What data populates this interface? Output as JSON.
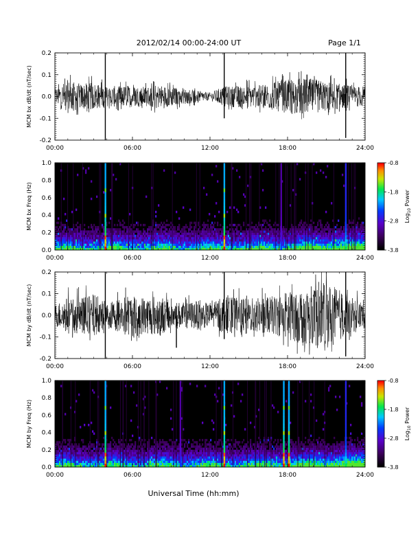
{
  "header": {
    "title": "2012/02/14  00:00-24:00 UT",
    "page": "Page 1/1"
  },
  "xlabel": "Universal Time (hh:mm)",
  "xticks": [
    "00:00",
    "06:00",
    "12:00",
    "18:00",
    "24:00"
  ],
  "colorbar": {
    "label_main": "Log",
    "label_sub": "10",
    "label_tail": " Power",
    "ticks": [
      "-0.8",
      "-1.8",
      "-2.8",
      "-3.8"
    ],
    "range": [
      -3.8,
      -0.8
    ]
  },
  "chart_data": [
    {
      "type": "line",
      "ylabel": "MCM bx dB/dt (nT/sec)",
      "xlim": [
        0,
        24
      ],
      "ylim": [
        -0.2,
        0.2
      ],
      "yticks": [
        "0.2",
        "0.1",
        "0.0",
        "-0.1",
        "-0.2"
      ],
      "series": [
        {
          "x": [
            0,
            1,
            2,
            3,
            4,
            5,
            6,
            7,
            8,
            9,
            10,
            11,
            12,
            13,
            14,
            15,
            16,
            17,
            18,
            19,
            20,
            21,
            22,
            23,
            24
          ],
          "envelope_high": [
            0.04,
            0.09,
            0.07,
            0.08,
            0.05,
            0.06,
            0.05,
            0.05,
            0.06,
            0.05,
            0.04,
            0.03,
            0.02,
            0.05,
            0.06,
            0.06,
            0.06,
            0.08,
            0.09,
            0.1,
            0.09,
            0.08,
            0.07,
            0.06,
            0.05
          ],
          "envelope_low": [
            -0.04,
            -0.08,
            -0.06,
            -0.06,
            -0.05,
            -0.05,
            -0.06,
            -0.05,
            -0.06,
            -0.05,
            -0.04,
            -0.03,
            -0.02,
            -0.05,
            -0.05,
            -0.05,
            -0.06,
            -0.07,
            -0.08,
            -0.09,
            -0.09,
            -0.07,
            -0.06,
            -0.05,
            -0.05
          ]
        }
      ],
      "spikes": [
        {
          "t": 3.9,
          "low": -0.21,
          "high": 0.2
        },
        {
          "t": 13.1,
          "low": -0.1,
          "high": 0.21
        },
        {
          "t": 22.5,
          "low": -0.19,
          "high": 0.2
        }
      ]
    },
    {
      "type": "heatmap",
      "ylabel": "MCM bx Freq (Hz)",
      "xlim": [
        0,
        24
      ],
      "ylim": [
        0.0,
        1.0
      ],
      "yticks": [
        "1.0",
        "0.8",
        "0.6",
        "0.4",
        "0.2",
        "0.0"
      ],
      "bright_lines": [
        {
          "t": 3.9,
          "level": "full"
        },
        {
          "t": 13.1,
          "level": "full"
        },
        {
          "t": 22.5,
          "level": "medium"
        },
        {
          "t": 17.5,
          "level": "weak"
        }
      ],
      "low_freq_power": "high below 0.1 Hz, activity increasing after 16:00"
    },
    {
      "type": "line",
      "ylabel": "MCM by dB/dt (nT/sec)",
      "xlim": [
        0,
        24
      ],
      "ylim": [
        -0.2,
        0.2
      ],
      "yticks": [
        "0.2",
        "0.1",
        "0.0",
        "-0.1",
        "-0.2"
      ],
      "series": [
        {
          "x": [
            0,
            1,
            2,
            3,
            4,
            5,
            6,
            7,
            8,
            9,
            10,
            11,
            12,
            13,
            14,
            15,
            16,
            17,
            18,
            19,
            20,
            21,
            22,
            23,
            24
          ],
          "envelope_high": [
            0.06,
            0.1,
            0.1,
            0.12,
            0.06,
            0.1,
            0.12,
            0.1,
            0.11,
            0.08,
            0.07,
            0.08,
            0.06,
            0.1,
            0.1,
            0.09,
            0.1,
            0.1,
            0.13,
            0.14,
            0.15,
            0.18,
            0.15,
            0.1,
            0.07
          ],
          "envelope_low": [
            -0.05,
            -0.09,
            -0.08,
            -0.1,
            -0.06,
            -0.08,
            -0.1,
            -0.09,
            -0.1,
            -0.07,
            -0.06,
            -0.07,
            -0.06,
            -0.09,
            -0.08,
            -0.08,
            -0.08,
            -0.1,
            -0.12,
            -0.15,
            -0.14,
            -0.16,
            -0.12,
            -0.08,
            -0.06
          ]
        }
      ],
      "spikes": [
        {
          "t": 3.9,
          "low": -0.21,
          "high": 0.2
        },
        {
          "t": 9.4,
          "low": -0.15,
          "high": 0.04
        },
        {
          "t": 13.1,
          "low": -0.11,
          "high": 0.21
        },
        {
          "t": 22.5,
          "low": -0.19,
          "high": 0.2
        }
      ]
    },
    {
      "type": "heatmap",
      "ylabel": "MCM by Freq (Hz)",
      "xlim": [
        0,
        24
      ],
      "ylim": [
        0.0,
        1.0
      ],
      "yticks": [
        "1.0",
        "0.8",
        "0.6",
        "0.4",
        "0.2",
        "0.0"
      ],
      "bright_lines": [
        {
          "t": 3.9,
          "level": "full"
        },
        {
          "t": 13.1,
          "level": "full"
        },
        {
          "t": 17.7,
          "level": "full"
        },
        {
          "t": 18.1,
          "level": "full"
        },
        {
          "t": 22.5,
          "level": "medium"
        },
        {
          "t": 9.7,
          "level": "weak"
        }
      ],
      "low_freq_power": "high below 0.1 Hz, activity increasing after 16:00"
    }
  ]
}
